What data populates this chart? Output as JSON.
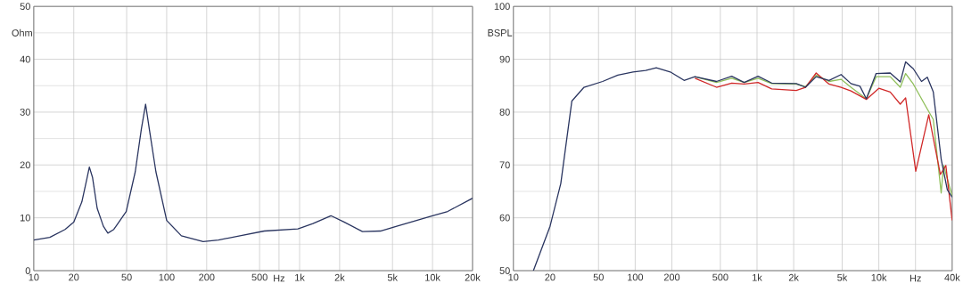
{
  "chart_data": [
    {
      "type": "line",
      "ylabel": "Ohm",
      "xlabel": "Hz",
      "log": "x",
      "grid": true,
      "xlim": [
        10,
        20000
      ],
      "ylim": [
        0,
        50
      ],
      "xticks": [
        {
          "value": 10,
          "label": "10"
        },
        {
          "value": 20,
          "label": "20"
        },
        {
          "value": 50,
          "label": "50"
        },
        {
          "value": 100,
          "label": "100"
        },
        {
          "value": 200,
          "label": "200"
        },
        {
          "value": 500,
          "label": "500"
        },
        {
          "value": 700,
          "label": null
        },
        {
          "value": 1000,
          "label": "1k"
        },
        {
          "value": 2000,
          "label": "2k"
        },
        {
          "value": 5000,
          "label": "5k"
        },
        {
          "value": 10000,
          "label": "10k"
        },
        {
          "value": 20000,
          "label": "20k"
        }
      ],
      "yticks": [
        0,
        10,
        20,
        30,
        40,
        50
      ],
      "series": [
        {
          "color": "#2a3560",
          "x": [
            10,
            13.2,
            17.2,
            20,
            23,
            25.2,
            26.2,
            27.7,
            30,
            33.4,
            36.1,
            40,
            49.6,
            58,
            64.5,
            69.4,
            74,
            83,
            100,
            129,
            188,
            245,
            356,
            542,
            970,
            1260,
            1720,
            2160,
            2970,
            4050,
            5900,
            10000,
            13000,
            20000
          ],
          "values": [
            5.8,
            6.3,
            7.8,
            9.2,
            13,
            17.6,
            19.6,
            17.6,
            11.8,
            8.4,
            7.1,
            7.8,
            11.2,
            18.7,
            26.8,
            31.5,
            26.8,
            18.7,
            9.5,
            6.6,
            5.5,
            5.8,
            6.6,
            7.5,
            7.9,
            8.9,
            10.4,
            9.2,
            7.4,
            7.5,
            8.7,
            10.4,
            11.2,
            13.7
          ]
        }
      ]
    },
    {
      "type": "line",
      "ylabel": "BSPL",
      "xlabel": "Hz",
      "log": "x",
      "grid": true,
      "xlim": [
        10,
        40000
      ],
      "ylim": [
        50,
        100
      ],
      "xticks": [
        {
          "value": 10,
          "label": "10"
        },
        {
          "value": 20,
          "label": "20"
        },
        {
          "value": 50,
          "label": "50"
        },
        {
          "value": 100,
          "label": "100"
        },
        {
          "value": 200,
          "label": "200"
        },
        {
          "value": 500,
          "label": "500"
        },
        {
          "value": 1000,
          "label": "1k"
        },
        {
          "value": 2000,
          "label": "2k"
        },
        {
          "value": 5000,
          "label": "5k"
        },
        {
          "value": 10000,
          "label": "10k"
        },
        {
          "value": 20000,
          "label": null
        },
        {
          "value": 40000,
          "label": "40k"
        }
      ],
      "yticks": [
        50,
        60,
        70,
        80,
        90,
        100
      ],
      "series": [
        {
          "color": "#8fbf5a",
          "x": [
            309,
            465,
            620,
            785,
            1020,
            1320,
            2100,
            2500,
            3060,
            3900,
            4900,
            5900,
            7900,
            9500,
            12400,
            15000,
            16600,
            19200,
            24000,
            28000,
            32500,
            34000,
            40000
          ],
          "values": [
            86.7,
            85.6,
            86.4,
            85.6,
            86.4,
            85.4,
            85.3,
            84.8,
            87,
            85.8,
            86.2,
            84.7,
            82.5,
            86.7,
            86.7,
            84.7,
            87.3,
            85.3,
            81.3,
            78.6,
            64.7,
            69.9,
            64.2
          ]
        },
        {
          "color": "#d02828",
          "x": [
            309,
            465,
            620,
            785,
            1020,
            1320,
            2100,
            2500,
            3060,
            3900,
            4900,
            5900,
            7900,
            10000,
            12400,
            15000,
            16600,
            20100,
            25700,
            32000,
            35500,
            40000
          ],
          "values": [
            86.4,
            84.7,
            85.5,
            85.3,
            85.6,
            84.4,
            84.1,
            84.7,
            87.4,
            85.3,
            84.7,
            84,
            82.4,
            84.5,
            83.8,
            81.5,
            82.7,
            68.8,
            79.5,
            68.2,
            69.9,
            59.5
          ]
        },
        {
          "color": "#2a3560",
          "x": [
            14.6,
            20,
            24.5,
            30.2,
            38,
            54,
            72,
            96,
            122,
            149,
            194,
            252,
            309,
            465,
            620,
            785,
            1020,
            1320,
            2100,
            2500,
            3060,
            3900,
            4900,
            5900,
            7000,
            7900,
            9500,
            12400,
            15000,
            16600,
            19200,
            22400,
            25000,
            28000,
            32500,
            36500,
            40000
          ],
          "values": [
            50,
            58.4,
            66.5,
            82.1,
            84.7,
            85.8,
            87,
            87.6,
            87.9,
            88.4,
            87.6,
            86,
            86.7,
            85.8,
            86.8,
            85.6,
            86.8,
            85.5,
            85.4,
            84.7,
            86.7,
            86,
            87.1,
            85.4,
            84.9,
            82.5,
            87.3,
            87.4,
            85.7,
            89.5,
            88.2,
            85.8,
            86.6,
            83.8,
            71.1,
            65.3,
            63.9
          ]
        }
      ]
    }
  ]
}
